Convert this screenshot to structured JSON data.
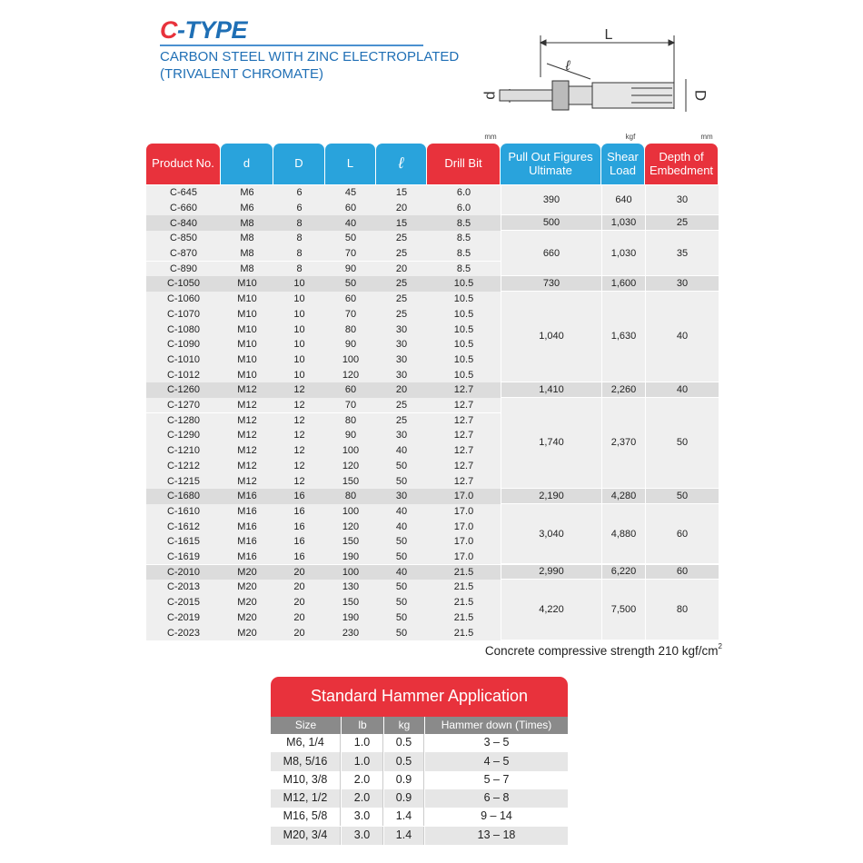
{
  "header": {
    "title_lead": "C",
    "title_rest": "-TYPE",
    "subtitle": [
      "CARBON STEEL WITH ZINC ELECTROPLATED",
      "(TRIVALENT CHROMATE)"
    ]
  },
  "diagram": {
    "L": "L",
    "l": "ℓ",
    "d": "d",
    "D": "D"
  },
  "table": {
    "units": [
      "mm",
      "kgf",
      "mm"
    ],
    "columns": [
      "Product No.",
      "d",
      "D",
      "L",
      "ℓ",
      "Drill Bit",
      "Pull Out Figures Ultimate",
      "Shear Load",
      "Depth of Embedment"
    ],
    "groups": [
      {
        "rows": [
          [
            "C-645",
            "M6",
            "6",
            "45",
            "15",
            "6.0"
          ],
          [
            "C-660",
            "M6",
            "6",
            "60",
            "20",
            "6.0"
          ]
        ],
        "pull_out": "390",
        "shear": "640",
        "depth": "30"
      },
      {
        "rows": [
          [
            "C-840",
            "M8",
            "8",
            "40",
            "15",
            "8.5"
          ]
        ],
        "pull_out": "500",
        "shear": "1,030",
        "depth": "25"
      },
      {
        "rows": [
          [
            "C-850",
            "M8",
            "8",
            "50",
            "25",
            "8.5"
          ],
          [
            "C-870",
            "M8",
            "8",
            "70",
            "25",
            "8.5"
          ],
          [
            "C-890",
            "M8",
            "8",
            "90",
            "20",
            "8.5"
          ]
        ],
        "pull_out": "660",
        "shear": "1,030",
        "depth": "35"
      },
      {
        "rows": [
          [
            "C-1050",
            "M10",
            "10",
            "50",
            "25",
            "10.5"
          ]
        ],
        "pull_out": "730",
        "shear": "1,600",
        "depth": "30"
      },
      {
        "rows": [
          [
            "C-1060",
            "M10",
            "10",
            "60",
            "25",
            "10.5"
          ],
          [
            "C-1070",
            "M10",
            "10",
            "70",
            "25",
            "10.5"
          ],
          [
            "C-1080",
            "M10",
            "10",
            "80",
            "30",
            "10.5"
          ],
          [
            "C-1090",
            "M10",
            "10",
            "90",
            "30",
            "10.5"
          ],
          [
            "C-1010",
            "M10",
            "10",
            "100",
            "30",
            "10.5"
          ],
          [
            "C-1012",
            "M10",
            "10",
            "120",
            "30",
            "10.5"
          ]
        ],
        "pull_out": "1,040",
        "shear": "1,630",
        "depth": "40"
      },
      {
        "rows": [
          [
            "C-1260",
            "M12",
            "12",
            "60",
            "20",
            "12.7"
          ]
        ],
        "pull_out": "1,410",
        "shear": "2,260",
        "depth": "40"
      },
      {
        "rows": [
          [
            "C-1270",
            "M12",
            "12",
            "70",
            "25",
            "12.7"
          ],
          [
            "C-1280",
            "M12",
            "12",
            "80",
            "25",
            "12.7"
          ],
          [
            "C-1290",
            "M12",
            "12",
            "90",
            "30",
            "12.7"
          ],
          [
            "C-1210",
            "M12",
            "12",
            "100",
            "40",
            "12.7"
          ],
          [
            "C-1212",
            "M12",
            "12",
            "120",
            "50",
            "12.7"
          ],
          [
            "C-1215",
            "M12",
            "12",
            "150",
            "50",
            "12.7"
          ]
        ],
        "pull_out": "1,740",
        "shear": "2,370",
        "depth": "50"
      },
      {
        "rows": [
          [
            "C-1680",
            "M16",
            "16",
            "80",
            "30",
            "17.0"
          ]
        ],
        "pull_out": "2,190",
        "shear": "4,280",
        "depth": "50"
      },
      {
        "rows": [
          [
            "C-1610",
            "M16",
            "16",
            "100",
            "40",
            "17.0"
          ],
          [
            "C-1612",
            "M16",
            "16",
            "120",
            "40",
            "17.0"
          ],
          [
            "C-1615",
            "M16",
            "16",
            "150",
            "50",
            "17.0"
          ],
          [
            "C-1619",
            "M16",
            "16",
            "190",
            "50",
            "17.0"
          ]
        ],
        "pull_out": "3,040",
        "shear": "4,880",
        "depth": "60"
      },
      {
        "rows": [
          [
            "C-2010",
            "M20",
            "20",
            "100",
            "40",
            "21.5"
          ]
        ],
        "pull_out": "2,990",
        "shear": "6,220",
        "depth": "60"
      },
      {
        "rows": [
          [
            "C-2013",
            "M20",
            "20",
            "130",
            "50",
            "21.5"
          ],
          [
            "C-2015",
            "M20",
            "20",
            "150",
            "50",
            "21.5"
          ],
          [
            "C-2019",
            "M20",
            "20",
            "190",
            "50",
            "21.5"
          ],
          [
            "C-2023",
            "M20",
            "20",
            "230",
            "50",
            "21.5"
          ]
        ],
        "pull_out": "4,220",
        "shear": "7,500",
        "depth": "80"
      }
    ],
    "note": "Concrete compressive strength 210 kgf/cm",
    "note_sup": "2"
  },
  "hammer": {
    "title": "Standard Hammer Application",
    "columns": [
      "Size",
      "lb",
      "kg",
      "Hammer down (Times)"
    ],
    "rows": [
      [
        "M6, 1/4",
        "1.0",
        "0.5",
        "3 – 5"
      ],
      [
        "M8, 5/16",
        "1.0",
        "0.5",
        "4 – 5"
      ],
      [
        "M10, 3/8",
        "2.0",
        "0.9",
        "5 – 7"
      ],
      [
        "M12, 1/2",
        "2.0",
        "0.9",
        "6 – 8"
      ],
      [
        "M16, 5/8",
        "3.0",
        "1.4",
        "9 – 14"
      ],
      [
        "M20, 3/4",
        "3.0",
        "1.4",
        "13 – 18"
      ]
    ]
  }
}
